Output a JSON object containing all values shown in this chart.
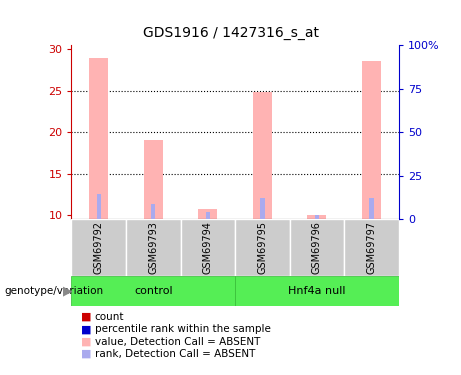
{
  "title": "GDS1916 / 1427316_s_at",
  "samples": [
    "GSM69792",
    "GSM69793",
    "GSM69794",
    "GSM69795",
    "GSM69796",
    "GSM69797"
  ],
  "groups": [
    "control",
    "control",
    "control",
    "Hnf4a null",
    "Hnf4a null",
    "Hnf4a null"
  ],
  "group_labels": [
    "control",
    "Hnf4a null"
  ],
  "bar_color_absent": "#ffb3b3",
  "rank_color_absent": "#aaaaee",
  "ylim_left": [
    9.5,
    30.5
  ],
  "ylim_right": [
    0,
    100
  ],
  "yticks_left": [
    10,
    15,
    20,
    25,
    30
  ],
  "yticks_right": [
    0,
    25,
    50,
    75,
    100
  ],
  "ytick_right_labels": [
    "0",
    "25",
    "50",
    "75",
    "100%"
  ],
  "value_bars": [
    28.9,
    19.0,
    10.7,
    24.8,
    10.0,
    28.6
  ],
  "rank_bars_left_scale": [
    12.5,
    11.3,
    10.4,
    12.1,
    10.0,
    12.1
  ],
  "gridline_color": "black",
  "bar_width": 0.35,
  "rank_bar_width": 0.08,
  "legend_items": [
    {
      "label": "count",
      "color": "#cc0000"
    },
    {
      "label": "percentile rank within the sample",
      "color": "#0000cc"
    },
    {
      "label": "value, Detection Call = ABSENT",
      "color": "#ffb3b3"
    },
    {
      "label": "rank, Detection Call = ABSENT",
      "color": "#aaaaee"
    }
  ],
  "genotype_label": "genotype/variation",
  "left_axis_color": "#cc0000",
  "right_axis_color": "#0000cc",
  "background_color": "#ffffff",
  "sample_box_color": "#cccccc",
  "group_box_color": "#55ee55",
  "group_box_border": "#33bb33"
}
